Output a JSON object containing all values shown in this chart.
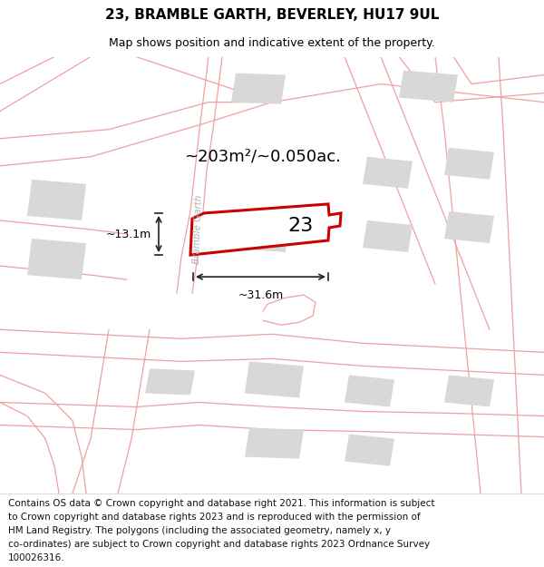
{
  "title": "23, BRAMBLE GARTH, BEVERLEY, HU17 9UL",
  "subtitle": "Map shows position and indicative extent of the property.",
  "footer_lines": [
    "Contains OS data © Crown copyright and database right 2021. This information is subject",
    "to Crown copyright and database rights 2023 and is reproduced with the permission of",
    "HM Land Registry. The polygons (including the associated geometry, namely x, y",
    "co-ordinates) are subject to Crown copyright and database rights 2023 Ordnance Survey",
    "100026316."
  ],
  "area_label": "~203m²/~0.050ac.",
  "width_label": "~31.6m",
  "height_label": "~13.1m",
  "plot_number": "23",
  "road_label": "Bramble Garth",
  "map_bg": "#f0f0f0",
  "plot_fill": "#ffffff",
  "plot_edge": "#cc0000",
  "building_fill": "#d8d8d8",
  "road_line_color": "#f0a0a0",
  "dim_line_color": "#222222",
  "title_fontsize": 11,
  "subtitle_fontsize": 9,
  "footer_fontsize": 7.5
}
